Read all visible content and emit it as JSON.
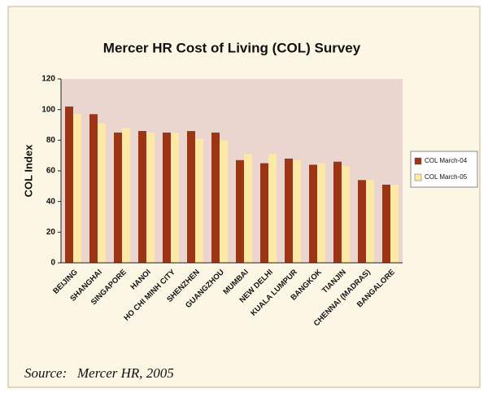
{
  "chart_data": {
    "type": "bar",
    "title": "Mercer HR Cost of Living (COL) Survey",
    "y_label": "COL Index",
    "source": "Source:   Mercer HR, 2005",
    "categories": [
      "BEIJING",
      "SHANGHAI",
      "SINGAPORE",
      "HANOI",
      "HO CHI MINH CITY",
      "SHENZHEN",
      "GUANGZHOU",
      "MUMBAI",
      "NEW DELHI",
      "KUALA LUMPUR",
      "BANGKOK",
      "TIANJIN",
      "CHENNAI (MADRAS)",
      "BANGALORE"
    ],
    "series": [
      {
        "name": "COL March-04",
        "color": "#9b3516",
        "values": [
          102,
          97,
          85,
          86,
          85,
          86,
          85,
          67,
          65,
          68,
          64,
          66,
          54,
          51
        ]
      },
      {
        "name": "COL March-05",
        "color": "#fde8a6",
        "values": [
          97,
          91,
          88,
          85,
          85,
          81,
          80,
          71,
          71,
          67,
          65,
          63,
          54,
          51
        ]
      }
    ],
    "ylim": [
      0,
      120
    ],
    "yticks": [
      0,
      20,
      40,
      60,
      80,
      100,
      120
    ],
    "grid": false,
    "legend": "right"
  }
}
